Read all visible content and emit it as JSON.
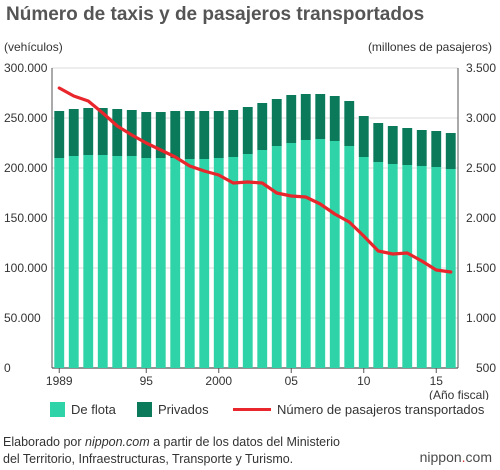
{
  "title": "Número de taxis y de pasajeros transportados",
  "left_unit": "(vehículos)",
  "right_unit": "(millones de pasajeros)",
  "x_unit": "(Año fiscal)",
  "colors": {
    "fleet": "#2fd3a8",
    "private": "#0b7a5b",
    "passengers": "#e8262c"
  },
  "legend": {
    "fleet": "De flota",
    "private": "Privados",
    "passengers": "Número de pasajeros transportados"
  },
  "source": {
    "prefix": "Elaborado por ",
    "site": "nippon.com",
    "middle": " a partir de los datos del Ministerio",
    "line2": "del Territorio, Infraestructuras, Transporte y Turismo."
  },
  "logo": {
    "name": "nippon",
    "dot": ".",
    "tld": "com"
  },
  "chart_data": {
    "type": "bar",
    "stacked": true,
    "secondary_axis_line": true,
    "x": [
      1989,
      1990,
      1991,
      1992,
      1993,
      1994,
      1995,
      1996,
      1997,
      1998,
      1999,
      2000,
      2001,
      2002,
      2003,
      2004,
      2005,
      2006,
      2007,
      2008,
      2009,
      2010,
      2011,
      2012,
      2013,
      2014,
      2015,
      2016
    ],
    "x_tick_labels": [
      {
        "x": 1989,
        "label": "1989"
      },
      {
        "x": 1995,
        "label": "95"
      },
      {
        "x": 2000,
        "label": "2000"
      },
      {
        "x": 2005,
        "label": "05"
      },
      {
        "x": 2010,
        "label": "10"
      },
      {
        "x": 2015,
        "label": "15"
      }
    ],
    "series": [
      {
        "name": "De flota",
        "axis": "left",
        "values": [
          210000,
          212000,
          213000,
          213000,
          212000,
          212000,
          210000,
          210000,
          210000,
          209000,
          209000,
          210000,
          211000,
          214000,
          218000,
          222000,
          225000,
          228000,
          229000,
          227000,
          222000,
          211000,
          206000,
          204000,
          203000,
          202000,
          201000,
          199000
        ]
      },
      {
        "name": "Privados",
        "axis": "left",
        "values": [
          47000,
          47000,
          47000,
          47000,
          47000,
          46000,
          46000,
          46000,
          47000,
          48000,
          48000,
          47000,
          47000,
          47000,
          47000,
          47000,
          48000,
          46000,
          45000,
          45000,
          45000,
          41000,
          39000,
          38000,
          37000,
          36000,
          36000,
          36000
        ]
      },
      {
        "name": "Número de pasajeros transportados",
        "axis": "right",
        "type": "line",
        "values": [
          3300,
          3220,
          3170,
          3050,
          2920,
          2830,
          2750,
          2680,
          2610,
          2520,
          2470,
          2430,
          2350,
          2360,
          2350,
          2250,
          2220,
          2210,
          2140,
          2040,
          1960,
          1820,
          1670,
          1640,
          1650,
          1570,
          1480,
          1460
        ]
      }
    ],
    "y_left": {
      "min": 0,
      "max": 300000,
      "ticks": [
        "0",
        "50.000",
        "100.000",
        "150.000",
        "200.000",
        "250.000",
        "300.000"
      ]
    },
    "y_right": {
      "min": 500,
      "max": 3500,
      "ticks": [
        "500",
        "1.000",
        "1.500",
        "2.000",
        "2.500",
        "3.000",
        "3.500"
      ]
    }
  }
}
